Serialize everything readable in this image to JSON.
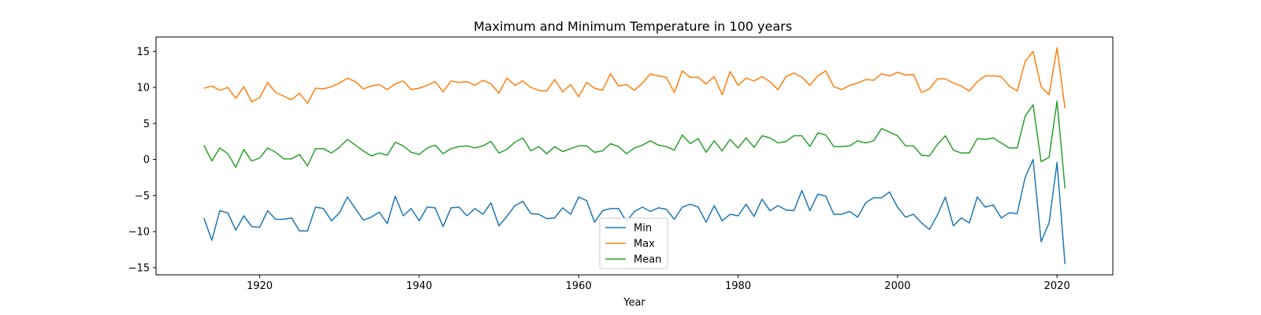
{
  "chart_data": {
    "type": "line",
    "title": "Maximum and Minimum Temperature in 100 years",
    "xlabel": "Year",
    "ylabel": "",
    "xlim": [
      1907,
      2027
    ],
    "ylim": [
      -16,
      17
    ],
    "xticks": [
      1920,
      1940,
      1960,
      1980,
      2000,
      2020
    ],
    "yticks": [
      -15,
      -10,
      -5,
      0,
      5,
      10,
      15
    ],
    "grid": false,
    "legend_position": "bottom-center",
    "x": [
      1913,
      1914,
      1915,
      1916,
      1917,
      1918,
      1919,
      1920,
      1921,
      1922,
      1923,
      1924,
      1925,
      1926,
      1927,
      1928,
      1929,
      1930,
      1931,
      1932,
      1933,
      1934,
      1935,
      1936,
      1937,
      1938,
      1939,
      1940,
      1941,
      1942,
      1943,
      1944,
      1945,
      1946,
      1947,
      1948,
      1949,
      1950,
      1951,
      1952,
      1953,
      1954,
      1955,
      1956,
      1957,
      1958,
      1959,
      1960,
      1961,
      1962,
      1963,
      1964,
      1965,
      1966,
      1967,
      1968,
      1969,
      1970,
      1971,
      1972,
      1973,
      1974,
      1975,
      1976,
      1977,
      1978,
      1979,
      1980,
      1981,
      1982,
      1983,
      1984,
      1985,
      1986,
      1987,
      1988,
      1989,
      1990,
      1991,
      1992,
      1993,
      1994,
      1995,
      1996,
      1997,
      1998,
      1999,
      2000,
      2001,
      2002,
      2003,
      2004,
      2005,
      2006,
      2007,
      2008,
      2009,
      2010,
      2011,
      2012,
      2013,
      2014,
      2015,
      2016,
      2017,
      2018,
      2019,
      2020,
      2021
    ],
    "series": [
      {
        "name": "Min",
        "color": "#1f77b4",
        "values": [
          -8.1,
          -11.2,
          -7.1,
          -7.4,
          -9.8,
          -7.8,
          -9.3,
          -9.4,
          -7.1,
          -8.3,
          -8.3,
          -8.1,
          -9.9,
          -9.9,
          -6.6,
          -6.8,
          -8.5,
          -7.4,
          -5.2,
          -6.8,
          -8.4,
          -8.0,
          -7.3,
          -8.9,
          -5.1,
          -7.8,
          -6.8,
          -8.5,
          -6.6,
          -6.7,
          -9.3,
          -6.7,
          -6.6,
          -7.8,
          -6.8,
          -7.6,
          -6.0,
          -9.2,
          -7.9,
          -6.4,
          -5.8,
          -7.5,
          -7.6,
          -8.2,
          -8.1,
          -6.7,
          -7.6,
          -5.2,
          -5.7,
          -8.7,
          -7.1,
          -6.8,
          -6.8,
          -8.6,
          -7.2,
          -6.6,
          -7.2,
          -6.7,
          -6.9,
          -8.3,
          -6.6,
          -6.2,
          -6.6,
          -8.7,
          -6.4,
          -8.5,
          -7.6,
          -7.8,
          -6.2,
          -7.9,
          -5.5,
          -7.1,
          -6.4,
          -7.0,
          -7.1,
          -4.3,
          -7.1,
          -4.8,
          -5.1,
          -7.6,
          -7.6,
          -7.2,
          -8.0,
          -6.0,
          -5.3,
          -5.3,
          -4.5,
          -6.6,
          -8.0,
          -7.6,
          -8.8,
          -9.7,
          -7.7,
          -5.2,
          -9.2,
          -8.1,
          -8.8,
          -5.2,
          -6.6,
          -6.3,
          -8.1,
          -7.4,
          -7.5,
          -2.5,
          0.0,
          -11.4,
          -8.8,
          -0.4,
          -14.5
        ]
      },
      {
        "name": "Max",
        "color": "#ff7f0e",
        "values": [
          9.9,
          10.2,
          9.6,
          10.0,
          8.5,
          10.1,
          8.0,
          8.6,
          10.7,
          9.3,
          8.8,
          8.3,
          9.2,
          7.8,
          9.9,
          9.8,
          10.1,
          10.6,
          11.3,
          10.8,
          9.8,
          10.2,
          10.4,
          9.7,
          10.5,
          10.9,
          9.7,
          9.9,
          10.3,
          10.8,
          9.4,
          10.9,
          10.7,
          10.8,
          10.3,
          11.0,
          10.5,
          9.2,
          11.3,
          10.3,
          10.9,
          10.0,
          9.6,
          9.5,
          11.1,
          9.4,
          10.4,
          8.7,
          10.7,
          9.9,
          9.6,
          11.9,
          10.2,
          10.4,
          9.6,
          10.6,
          11.9,
          11.6,
          11.4,
          9.3,
          12.3,
          11.4,
          11.4,
          10.5,
          11.5,
          9.0,
          12.2,
          10.3,
          11.3,
          10.9,
          11.5,
          10.8,
          9.7,
          11.5,
          12.0,
          11.4,
          10.3,
          11.6,
          12.3,
          10.1,
          9.7,
          10.3,
          10.6,
          11.1,
          11.0,
          11.9,
          11.6,
          12.1,
          11.7,
          11.8,
          9.3,
          9.8,
          11.2,
          11.2,
          10.6,
          10.2,
          9.5,
          10.8,
          11.6,
          11.6,
          11.5,
          10.2,
          9.5,
          13.6,
          15.0,
          10.1,
          9.0,
          15.5,
          7.1
        ]
      },
      {
        "name": "Mean",
        "color": "#2ca02c",
        "values": [
          2.0,
          -0.2,
          1.6,
          0.8,
          -1.1,
          1.4,
          -0.2,
          0.2,
          1.6,
          1.0,
          0.1,
          0.1,
          0.7,
          -0.9,
          1.5,
          1.5,
          0.9,
          1.7,
          2.8,
          2.0,
          1.2,
          0.5,
          0.9,
          0.6,
          2.4,
          1.9,
          1.0,
          0.7,
          1.6,
          2.0,
          0.8,
          1.5,
          1.8,
          1.9,
          1.6,
          1.9,
          2.5,
          0.9,
          1.4,
          2.4,
          3.0,
          1.2,
          1.8,
          0.8,
          1.8,
          1.1,
          1.5,
          1.9,
          1.9,
          1.0,
          1.2,
          2.2,
          1.8,
          0.8,
          1.6,
          2.0,
          2.6,
          2.0,
          1.8,
          1.3,
          3.4,
          2.2,
          2.9,
          1.0,
          2.6,
          1.2,
          2.8,
          1.6,
          3.0,
          1.7,
          3.3,
          3.0,
          2.3,
          2.5,
          3.3,
          3.3,
          1.8,
          3.7,
          3.4,
          1.8,
          1.8,
          1.9,
          2.6,
          2.3,
          2.6,
          4.3,
          3.8,
          3.3,
          1.9,
          1.9,
          0.6,
          0.5,
          2.1,
          3.3,
          1.3,
          0.9,
          0.9,
          2.9,
          2.8,
          3.0,
          2.3,
          1.6,
          1.6,
          6.0,
          7.6,
          -0.3,
          0.3,
          8.1,
          -4.0
        ]
      }
    ]
  }
}
